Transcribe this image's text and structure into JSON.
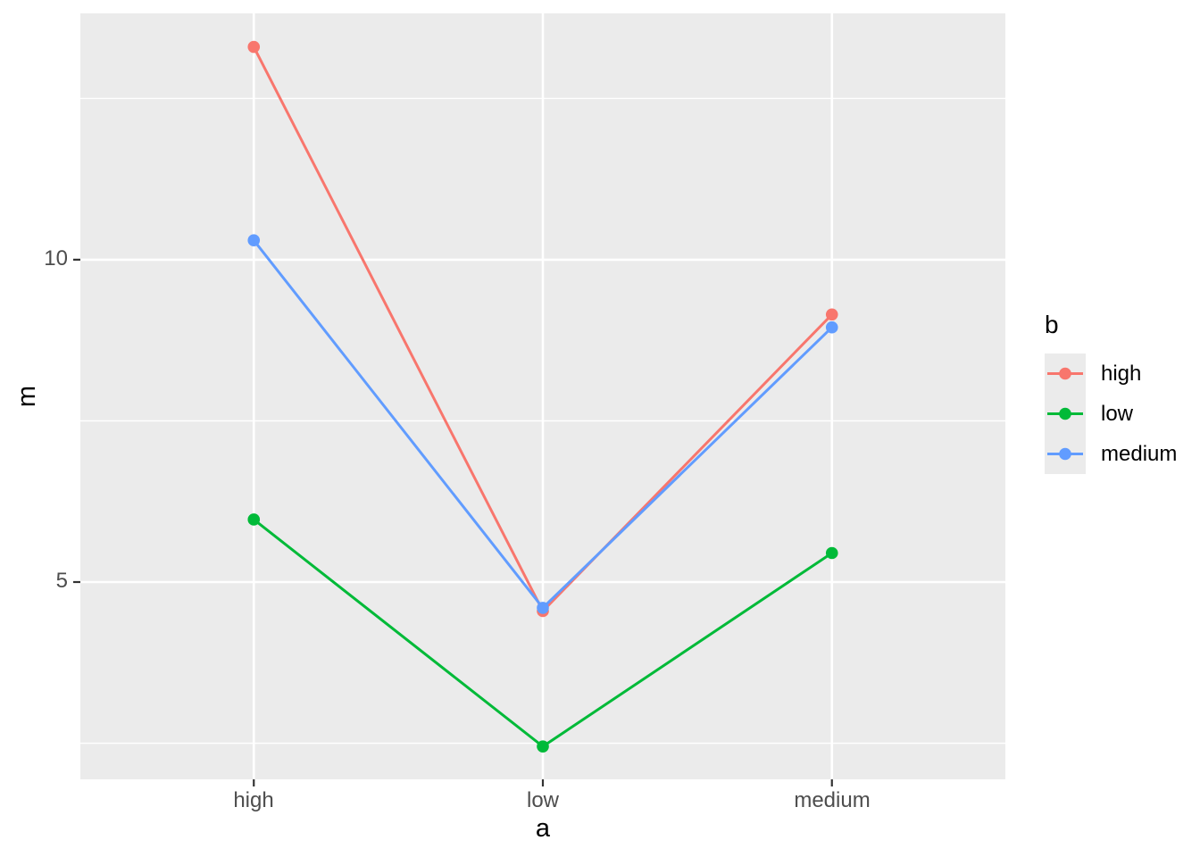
{
  "chart_data": {
    "type": "line",
    "title": "",
    "xlabel": "a",
    "ylabel": "m",
    "categories": [
      "high",
      "low",
      "medium"
    ],
    "series": [
      {
        "name": "high",
        "color": "#F8766D",
        "values": [
          13.3,
          4.55,
          9.15
        ]
      },
      {
        "name": "low",
        "color": "#00BA38",
        "values": [
          5.97,
          2.45,
          5.45
        ]
      },
      {
        "name": "medium",
        "color": "#619CFF",
        "values": [
          10.3,
          4.6,
          8.95
        ]
      }
    ],
    "legend_title": "b",
    "legend_position": "right",
    "ylim": [
      1.94,
      13.82
    ],
    "yticks_major": [
      5,
      10
    ],
    "ytick_labels": [
      "5",
      "10"
    ],
    "yticks_minor": [
      2.5,
      7.5,
      12.5
    ],
    "xtick_labels": [
      "high",
      "low",
      "medium"
    ],
    "grid": true,
    "colors": {
      "panel_bg": "#EBEBEB",
      "grid": "#FFFFFF",
      "tick_mark": "#333333",
      "tick_label": "#4D4D4D",
      "axis_title": "#000000",
      "legend_key_bg": "#EBEBEB"
    }
  }
}
